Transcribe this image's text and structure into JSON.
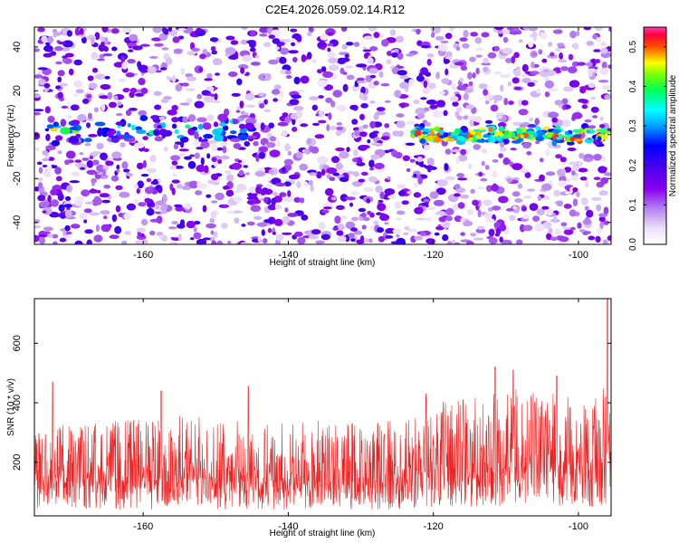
{
  "figure": {
    "title": "C2E4.2026.059.02.14.R12"
  },
  "colors": {
    "frame": "#000000",
    "snr_line": "#ee2222",
    "background": "#ffffff"
  },
  "chart_data": [
    {
      "type": "heatmap",
      "xlabel": "Height of straight line (km)",
      "ylabel": "Frequency (Hz)",
      "xlim": [
        -175,
        -95.5
      ],
      "ylim": [
        -50,
        49
      ],
      "x_ticks": [
        -160,
        -140,
        -120,
        -100
      ],
      "y_ticks": [
        -40,
        -20,
        0,
        20,
        40
      ],
      "grid": false,
      "colorbar": {
        "label": "Normalized spectral amplitude",
        "range": [
          0.0,
          0.55
        ],
        "ticks": [
          0.0,
          0.1,
          0.2,
          0.3,
          0.4,
          0.5
        ],
        "tick_labels": [
          "0.0",
          "0.1",
          "0.2",
          "0.3",
          "0.4",
          "0.5"
        ],
        "colors": [
          "#ffffff",
          "#e6d6f6",
          "#8800ee",
          "#0000ff",
          "#00ffff",
          "#00ff00",
          "#ffff00",
          "#ff0000",
          "#ff33aa"
        ]
      },
      "features": [
        {
          "description_from_pixels": "strong band near 0 Hz",
          "x_range": [
            -123,
            -96
          ],
          "y_center": 0,
          "peak_value": 0.5
        },
        {
          "description_from_pixels": "weaker band near 0 Hz",
          "x_range": [
            -175,
            -145
          ],
          "y_center": 2,
          "peak_value": 0.28
        }
      ]
    },
    {
      "type": "line",
      "xlabel": "Height of straight line (km)",
      "ylabel": "SNR (10 * v/v)",
      "xlim": [
        -175,
        -95.5
      ],
      "ylim": [
        20,
        750
      ],
      "x_ticks": [
        -160,
        -140,
        -120,
        -100
      ],
      "y_ticks": [
        200,
        400,
        600
      ],
      "grid": false,
      "series": [
        {
          "color": "#ee2222",
          "envelope": [
            {
              "x": -175,
              "base": 145,
              "upper": 330,
              "lower": 45
            },
            {
              "x": -165,
              "base": 140,
              "upper": 340,
              "lower": 40
            },
            {
              "x": -155,
              "base": 140,
              "upper": 360,
              "lower": 40
            },
            {
              "x": -145,
              "base": 135,
              "upper": 340,
              "lower": 40
            },
            {
              "x": -135,
              "base": 135,
              "upper": 340,
              "lower": 40
            },
            {
              "x": -127,
              "base": 140,
              "upper": 340,
              "lower": 40
            },
            {
              "x": -122,
              "base": 165,
              "upper": 390,
              "lower": 45
            },
            {
              "x": -115,
              "base": 175,
              "upper": 420,
              "lower": 50
            },
            {
              "x": -108,
              "base": 185,
              "upper": 450,
              "lower": 55
            },
            {
              "x": -102,
              "base": 180,
              "upper": 430,
              "lower": 50
            },
            {
              "x": -98,
              "base": 175,
              "upper": 410,
              "lower": 50
            },
            {
              "x": -95.5,
              "base": 210,
              "upper": 480,
              "lower": 40
            }
          ],
          "spikes": [
            {
              "x": -172.5,
              "value": 470
            },
            {
              "x": -157.5,
              "value": 440
            },
            {
              "x": -145.5,
              "value": 455
            },
            {
              "x": -121,
              "value": 430
            },
            {
              "x": -111.5,
              "value": 520
            },
            {
              "x": -109,
              "value": 510
            },
            {
              "x": -103,
              "value": 490
            },
            {
              "x": -96,
              "value": 750
            }
          ]
        }
      ]
    }
  ]
}
